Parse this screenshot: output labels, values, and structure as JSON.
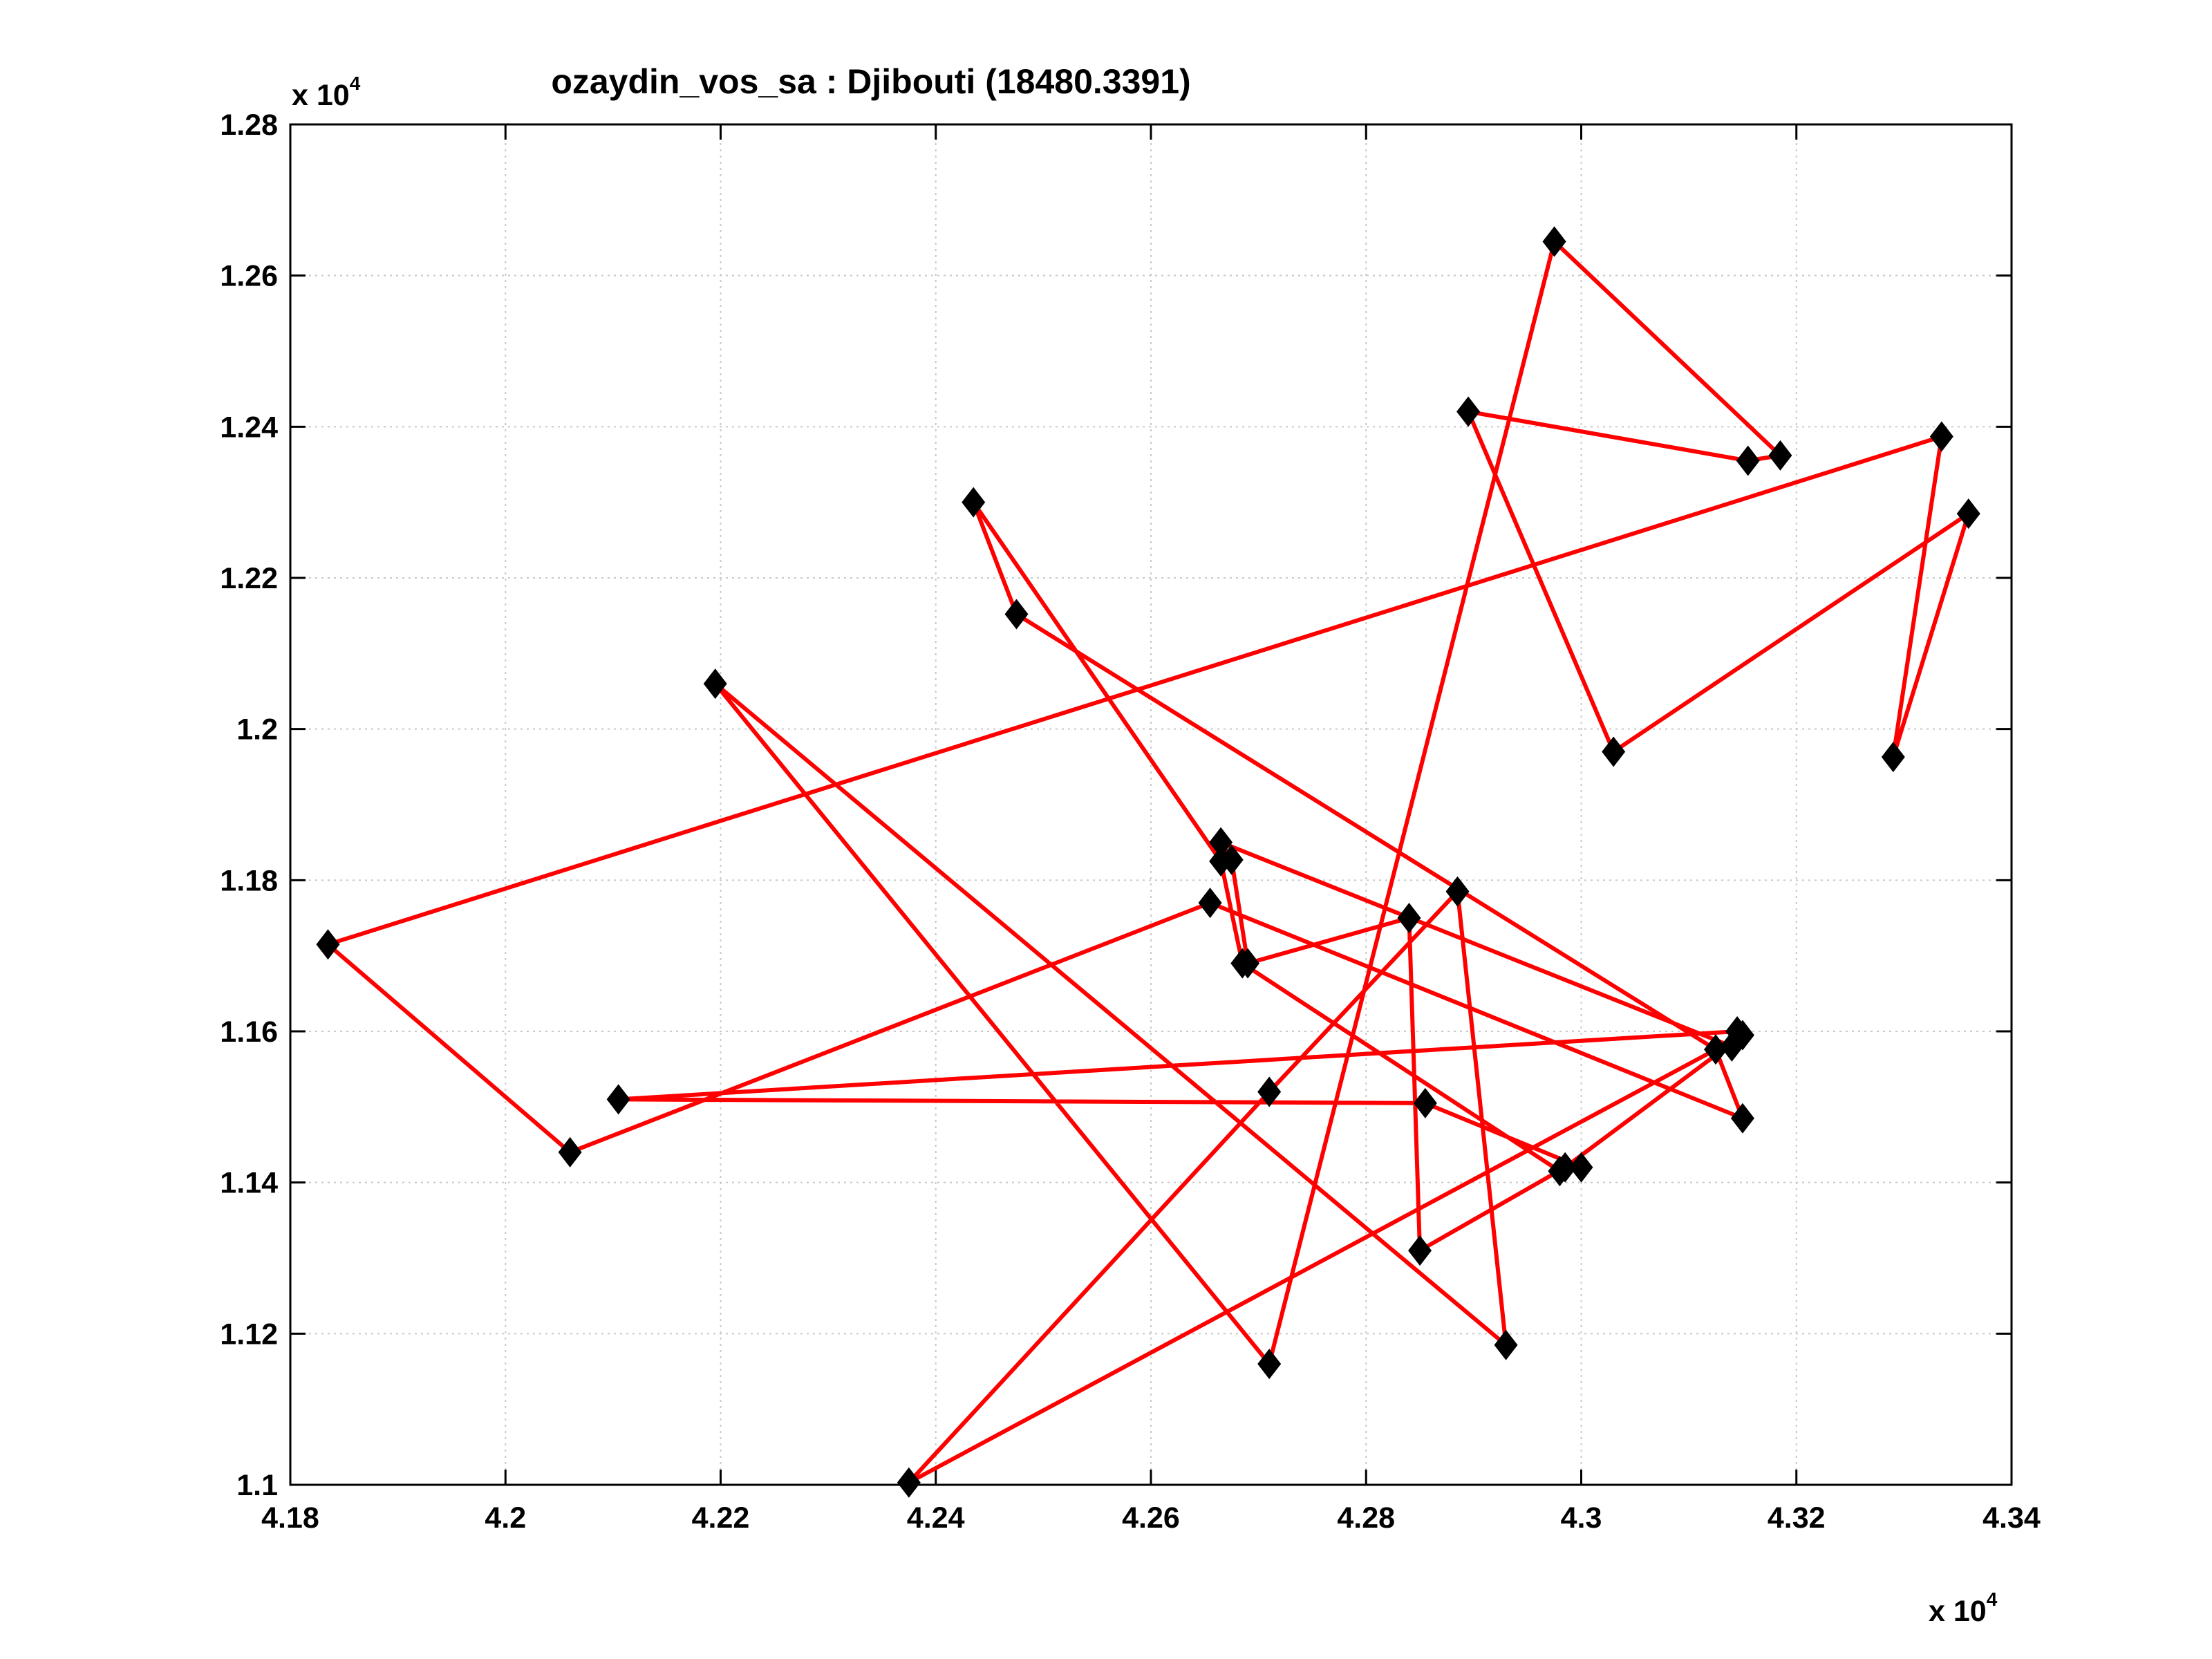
{
  "chart_data": {
    "type": "line",
    "title": "ozaydin_vos_sa : Djibouti (18480.3391)",
    "x_multiplier": {
      "base": "x 10",
      "exp": "4"
    },
    "y_multiplier": {
      "base": "x 10",
      "exp": "4"
    },
    "xlim": [
      41800,
      43400
    ],
    "ylim": [
      11000,
      12800
    ],
    "x_ticks": [
      41800,
      42000,
      42200,
      42400,
      42600,
      42800,
      43000,
      43200,
      43400
    ],
    "y_ticks": [
      11000,
      11200,
      11400,
      11600,
      11800,
      12000,
      12200,
      12400,
      12600,
      12800
    ],
    "x_tick_labels": [
      "4.18",
      "4.2",
      "4.22",
      "4.24",
      "4.26",
      "4.28",
      "4.3",
      "4.32",
      "4.34"
    ],
    "y_tick_labels": [
      "1.1",
      "1.12",
      "1.14",
      "1.16",
      "1.18",
      "1.2",
      "1.22",
      "1.24",
      "1.26",
      "1.28"
    ],
    "grid": true,
    "line_color": "#ff0000",
    "marker_color": "#000000",
    "marker": "diamond",
    "series": [
      {
        "x": [
          42975,
          43185,
          43155,
          42895,
          43030,
          43360,
          43290,
          43335,
          41835,
          42060,
          42655,
          43150,
          43125,
          42475,
          42435,
          42665,
          42685,
          42980,
          43000,
          42855,
          42105,
          43145,
          43140,
          42665,
          42675,
          42690,
          42840,
          42850,
          42985,
          43150,
          42375,
          42710,
          42885,
          42930,
          42195,
          42710,
          42975
        ],
        "y": [
          12645,
          12362,
          12355,
          12420,
          11970,
          12285,
          11963,
          12387,
          11715,
          11440,
          11770,
          11485,
          11576,
          12152,
          12300,
          11825,
          11690,
          11415,
          11420,
          11505,
          11510,
          11600,
          11580,
          11850,
          11827,
          11690,
          11750,
          11310,
          11420,
          11595,
          11003,
          11520,
          11785,
          11185,
          12060,
          11160,
          12645
        ]
      }
    ]
  }
}
